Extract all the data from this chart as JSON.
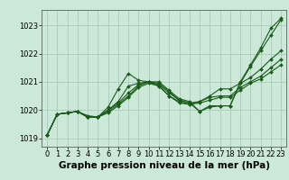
{
  "background_color": "#cce8d8",
  "grid_color": "#aaccbb",
  "line_color": "#1a5c1a",
  "marker_color": "#1a5c1a",
  "xlabel": "Graphe pression niveau de la mer (hPa)",
  "xlabel_fontsize": 7.5,
  "tick_fontsize": 6,
  "xlim": [
    -0.5,
    23.5
  ],
  "ylim": [
    1018.7,
    1023.55
  ],
  "yticks": [
    1019,
    1020,
    1021,
    1022,
    1023
  ],
  "xticks": [
    0,
    1,
    2,
    3,
    4,
    5,
    6,
    7,
    8,
    9,
    10,
    11,
    12,
    13,
    14,
    15,
    16,
    17,
    18,
    19,
    20,
    21,
    22,
    23
  ],
  "series": [
    [
      1019.1,
      1019.85,
      1019.9,
      1019.95,
      1019.8,
      1019.75,
      1020.1,
      1020.75,
      1021.3,
      1021.05,
      1021.0,
      1021.0,
      1020.7,
      1020.4,
      1020.3,
      1019.95,
      1020.15,
      1020.15,
      1020.15,
      1021.0,
      1021.6,
      1022.2,
      1022.9,
      1023.25
    ],
    [
      1019.1,
      1019.85,
      1019.9,
      1019.95,
      1019.75,
      1019.75,
      1020.0,
      1020.3,
      1020.85,
      1020.95,
      1021.0,
      1020.95,
      1020.65,
      1020.35,
      1020.25,
      1020.3,
      1020.5,
      1020.75,
      1020.75,
      1020.95,
      1021.15,
      1021.45,
      1021.8,
      1022.1
    ],
    [
      1019.1,
      1019.85,
      1019.9,
      1019.95,
      1019.75,
      1019.75,
      1020.0,
      1020.25,
      1020.6,
      1020.9,
      1021.0,
      1020.9,
      1020.6,
      1020.35,
      1020.25,
      1019.95,
      1020.1,
      1020.15,
      1020.15,
      1020.95,
      1021.55,
      1022.1,
      1022.65,
      1023.2
    ],
    [
      1019.1,
      1019.85,
      1019.9,
      1019.95,
      1019.75,
      1019.75,
      1019.95,
      1020.2,
      1020.5,
      1020.85,
      1021.0,
      1020.85,
      1020.5,
      1020.3,
      1020.2,
      1020.3,
      1020.45,
      1020.5,
      1020.5,
      1020.8,
      1021.0,
      1021.2,
      1021.5,
      1021.8
    ],
    [
      1019.1,
      1019.85,
      1019.9,
      1019.95,
      1019.75,
      1019.75,
      1019.9,
      1020.15,
      1020.45,
      1020.8,
      1020.95,
      1020.85,
      1020.5,
      1020.25,
      1020.2,
      1020.25,
      1020.35,
      1020.45,
      1020.45,
      1020.7,
      1020.95,
      1021.1,
      1021.35,
      1021.6
    ]
  ]
}
